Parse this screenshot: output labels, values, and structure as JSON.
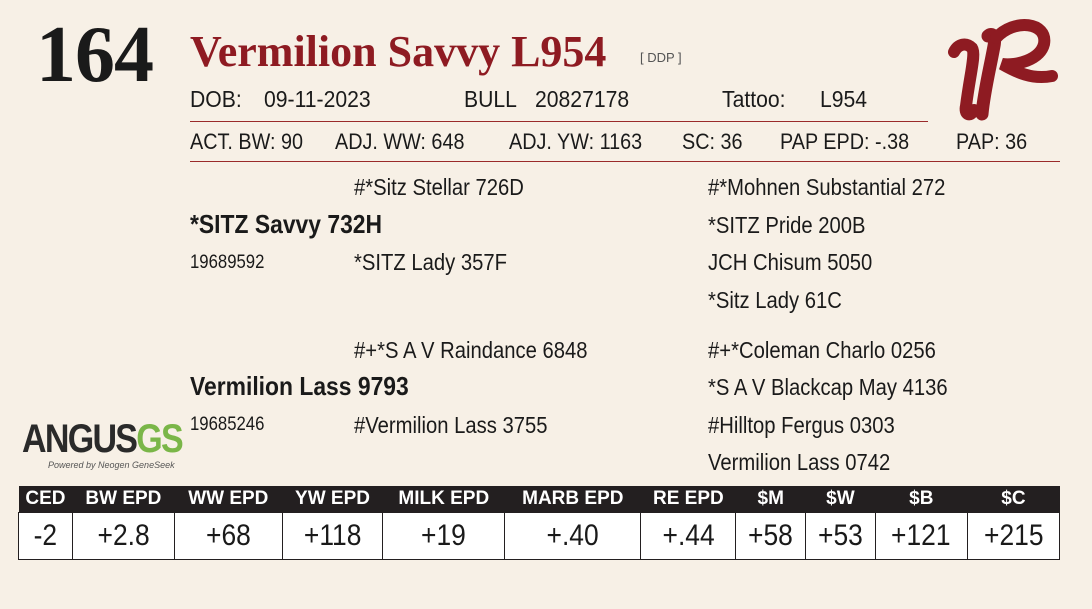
{
  "lot_number": "164",
  "animal": {
    "name": "Vermilion Savvy L954",
    "reg_tag": "[ DDP ]",
    "dob_label": "DOB:",
    "dob": "09-11-2023",
    "sex_label": "BULL",
    "reg_number": "20827178",
    "tattoo_label": "Tattoo:",
    "tattoo": "L954"
  },
  "performance": {
    "act_bw": "ACT. BW: 90",
    "adj_ww": "ADJ. WW: 648",
    "adj_yw": "ADJ. YW: 1163",
    "sc": "SC: 36",
    "pap_epd": "PAP EPD: -.38",
    "pap": "PAP: 36"
  },
  "pedigree": {
    "sire": {
      "name": "*SITZ Savvy 732H",
      "reg": "19689592",
      "sire": "#*Sitz Stellar 726D",
      "dam": "*SITZ Lady 357F",
      "sire_sire": "#*Mohnen Substantial 272",
      "sire_dam": "*SITZ Pride 200B",
      "dam_sire": "JCH Chisum 5050",
      "dam_dam": "*Sitz Lady 61C"
    },
    "dam": {
      "name": "Vermilion Lass 9793",
      "reg": "19685246",
      "sire": "#+*S A V Raindance 6848",
      "dam": "#Vermilion Lass 3755",
      "sire_sire": "#+*Coleman Charlo 0256",
      "sire_dam": "*S A V Blackcap May 4136",
      "dam_sire": "#Hilltop Fergus 0303",
      "dam_dam": "Vermilion Lass 0742"
    }
  },
  "logo": {
    "main": "ANGUS",
    "accent": "GS",
    "tagline": "Powered by Neogen GeneSeek"
  },
  "epd": {
    "headers": [
      "CED",
      "BW EPD",
      "WW EPD",
      "YW EPD",
      "MILK EPD",
      "MARB EPD",
      "RE EPD",
      "$M",
      "$W",
      "$B",
      "$C"
    ],
    "values": [
      "-2",
      "+2.8",
      "+68",
      "+118",
      "+19",
      "+.40",
      "+.44",
      "+58",
      "+53",
      "+121",
      "+215"
    ]
  },
  "colors": {
    "name_red": "#8e1b22",
    "background": "#f7f0e6",
    "header_black": "#231f20",
    "angus_green": "#7ab648"
  }
}
